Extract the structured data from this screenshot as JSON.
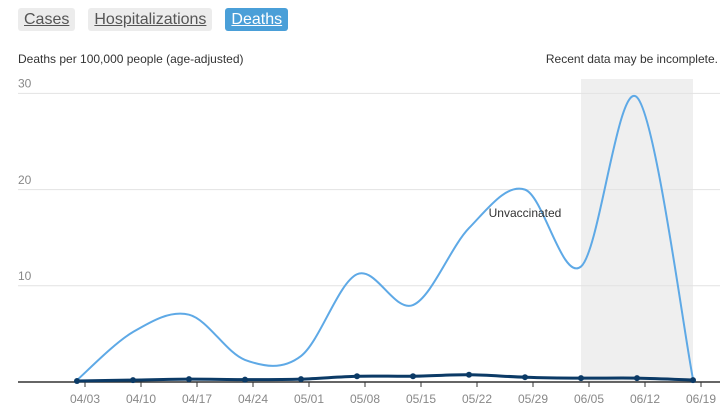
{
  "tabs": [
    "Cases",
    "Hospitalizations",
    "Deaths"
  ],
  "selected_tab": 2,
  "chart_data": {
    "type": "line",
    "subtitle": "Deaths per 100,000 people (age-adjusted)",
    "note": "Recent data may be incomplete.",
    "categories": [
      "04/03",
      "04/10",
      "04/17",
      "04/24",
      "05/01",
      "05/08",
      "05/15",
      "05/22",
      "05/29",
      "06/05",
      "06/12",
      "06/19"
    ],
    "series": [
      {
        "name": "Unvaccinated",
        "color": "#5ea9e6",
        "values": [
          0.2,
          5.2,
          7,
          2.3,
          2.7,
          11.2,
          8,
          16,
          20,
          12,
          29.6,
          0.3
        ]
      },
      {
        "color": "#0b3a66",
        "markers": true,
        "values": [
          0.1,
          0.2,
          0.3,
          0.25,
          0.3,
          0.6,
          0.6,
          0.75,
          0.5,
          0.4,
          0.4,
          0.2
        ]
      }
    ],
    "label_index": 8,
    "shaded_range": [
      9,
      11
    ],
    "ylim": [
      0,
      31.5
    ],
    "yticks": [
      10,
      20,
      30
    ],
    "grid": true
  }
}
